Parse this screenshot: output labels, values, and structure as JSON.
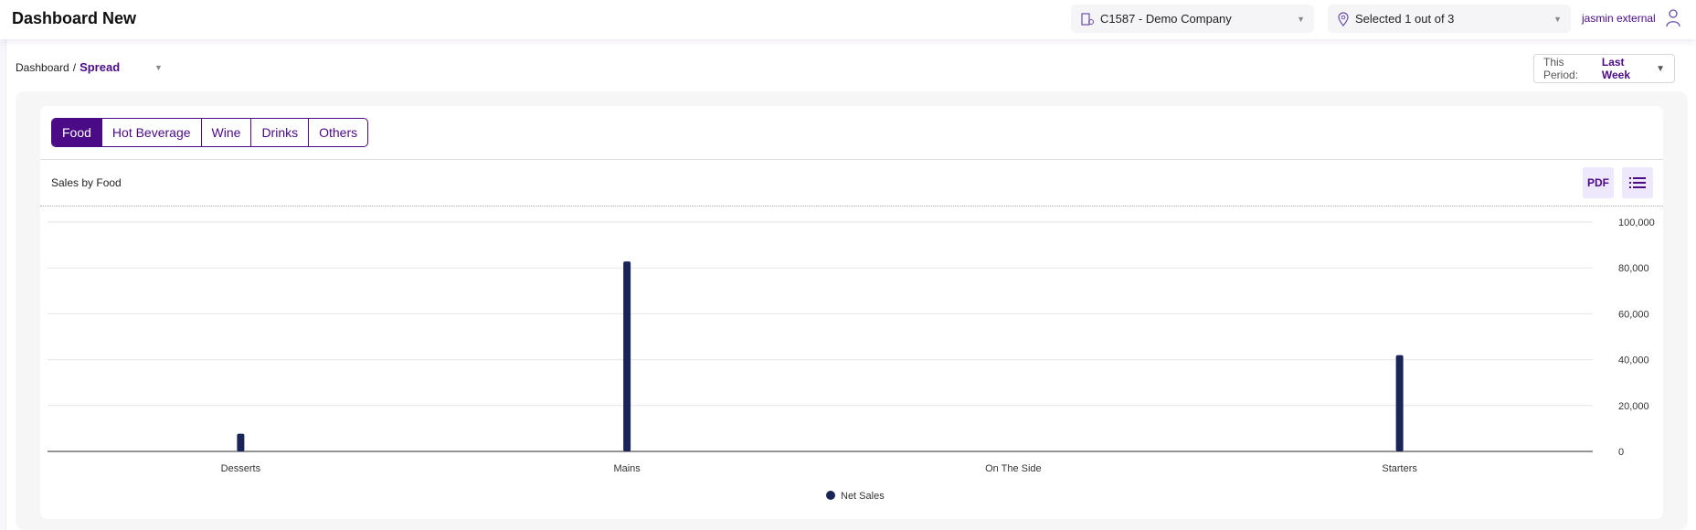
{
  "header": {
    "title": "Dashboard New",
    "company": "C1587 - Demo Company",
    "location": "Selected 1 out of 3",
    "user": "jasmin external"
  },
  "breadcrumb": {
    "root": "Dashboard",
    "separator": "/",
    "current": "Spread"
  },
  "period": {
    "label": "This Period:",
    "value": "Last Week"
  },
  "tabs": [
    {
      "label": "Food",
      "active": true
    },
    {
      "label": "Hot Beverage"
    },
    {
      "label": "Wine"
    },
    {
      "label": "Drinks"
    },
    {
      "label": "Others"
    }
  ],
  "panel": {
    "title": "Sales by Food",
    "pdf_label": "PDF",
    "menu_icon": "list-icon"
  },
  "colors": {
    "accent": "#4b0a86",
    "bar": "#1a2456"
  },
  "chart_data": {
    "type": "bar",
    "categories": [
      "Desserts",
      "Mains",
      "On The Side",
      "Starters"
    ],
    "series": [
      {
        "name": "Net Sales",
        "values": [
          7700,
          82800,
          0,
          42000
        ]
      }
    ],
    "ylim": [
      0,
      100000
    ],
    "yticks": [
      "0",
      "20,000",
      "40,000",
      "60,000",
      "80,000",
      "100,000"
    ],
    "yaxis_position": "right",
    "grid": true,
    "legend": "bottom"
  }
}
